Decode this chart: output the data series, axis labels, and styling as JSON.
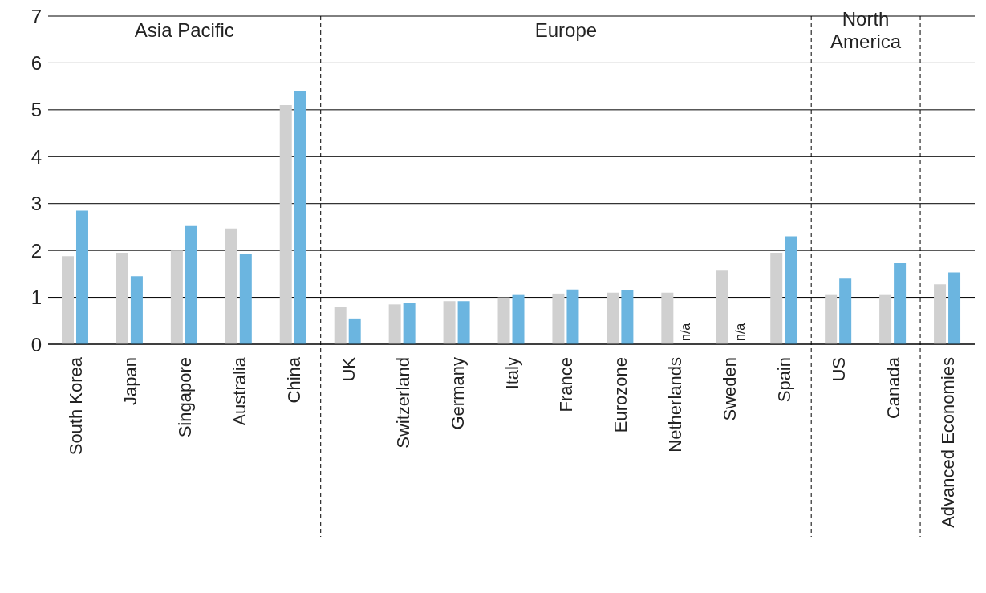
{
  "chart_data": {
    "type": "bar",
    "categories": [
      "South Korea",
      "Japan",
      "Singapore",
      "Australia",
      "China",
      "UK",
      "Switzerland",
      "Germany",
      "Italy",
      "France",
      "Eurozone",
      "Netherlands",
      "Sweden",
      "Spain",
      "US",
      "Canada",
      "Advanced Economies"
    ],
    "series": [
      {
        "color": "#d0d0d0",
        "values": [
          1.88,
          1.95,
          2.0,
          2.47,
          5.1,
          0.8,
          0.85,
          0.92,
          1.0,
          1.08,
          1.1,
          1.1,
          1.57,
          1.95,
          1.05,
          1.05,
          1.28
        ]
      },
      {
        "color": "#6bb5e0",
        "values": [
          2.85,
          1.45,
          2.52,
          1.92,
          5.4,
          0.55,
          0.88,
          0.92,
          1.05,
          1.17,
          1.15,
          null,
          null,
          2.3,
          1.4,
          1.73,
          1.53
        ],
        "value_labels": [
          null,
          null,
          null,
          null,
          null,
          null,
          null,
          null,
          null,
          null,
          null,
          "n/a",
          "n/a",
          null,
          null,
          null,
          null
        ]
      }
    ],
    "ylim": [
      0,
      7
    ],
    "yticks": [
      0,
      1,
      2,
      3,
      4,
      5,
      6,
      7
    ],
    "grid": "y",
    "annotations": [
      "Asia Pacific",
      "Europe",
      "North America"
    ]
  }
}
